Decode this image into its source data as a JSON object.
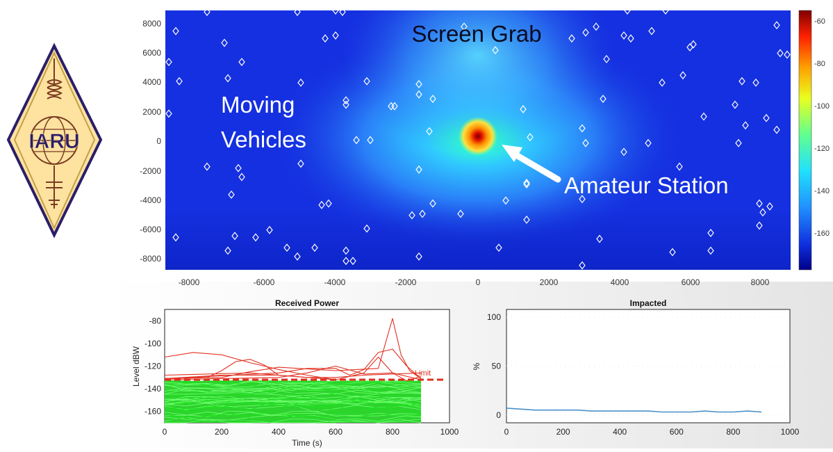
{
  "logo": {
    "text": "IARU"
  },
  "heatmap": {
    "title": "Screen Grab",
    "label_vehicles_line1": "Moving",
    "label_vehicles_line2": "Vehicles",
    "label_station": "Amateur Station",
    "x_ticks": [
      "-8000",
      "-6000",
      "-4000",
      "-2000",
      "0",
      "2000",
      "4000",
      "6000",
      "8000"
    ],
    "y_ticks": [
      "8000",
      "6000",
      "4000",
      "2000",
      "0",
      "-2000",
      "-4000",
      "-6000",
      "-8000"
    ],
    "colorbar_ticks": [
      "-60",
      "-80",
      "-100",
      "-120",
      "-140",
      "-160"
    ],
    "colors": {
      "background": "#1530e0",
      "hot": "#8b0000",
      "glow": "#40e0ff"
    }
  },
  "chart_data": [
    {
      "type": "heatmap",
      "title": "Screen Grab",
      "xlim": [
        -9000,
        9000
      ],
      "ylim": [
        -8800,
        8800
      ],
      "clim": [
        -178,
        -55
      ],
      "colorbar_ticks": [
        -60,
        -80,
        -100,
        -120,
        -140,
        -160
      ],
      "source": {
        "label": "Amateur Station",
        "x": 0,
        "y": 0
      },
      "vehicles": [
        [
          -8700,
          7400
        ],
        [
          -7800,
          8700
        ],
        [
          -7300,
          6600
        ],
        [
          -8900,
          5300
        ],
        [
          -8600,
          4000
        ],
        [
          -8900,
          1800
        ],
        [
          -7200,
          4200
        ],
        [
          -6800,
          5300
        ],
        [
          -5200,
          8700
        ],
        [
          -4100,
          8800
        ],
        [
          -3900,
          8700
        ],
        [
          -4400,
          6900
        ],
        [
          -4100,
          7100
        ],
        [
          -3200,
          4000
        ],
        [
          -1700,
          3800
        ],
        [
          -1700,
          3100
        ],
        [
          -1300,
          2800
        ],
        [
          -2400,
          2300
        ],
        [
          -2500,
          2300
        ],
        [
          -3800,
          2700
        ],
        [
          -3800,
          2400
        ],
        [
          -5100,
          3900
        ],
        [
          -1400,
          600
        ],
        [
          -3500,
          0
        ],
        [
          -3100,
          0
        ],
        [
          -7800,
          -1800
        ],
        [
          -6900,
          -1900
        ],
        [
          -6800,
          -2500
        ],
        [
          -7100,
          -3700
        ],
        [
          -5100,
          -1600
        ],
        [
          -4500,
          -4400
        ],
        [
          -4300,
          -4300
        ],
        [
          -3200,
          -6000
        ],
        [
          -1600,
          -5000
        ],
        [
          -1900,
          -5100
        ],
        [
          -1300,
          -4300
        ],
        [
          -1700,
          -2000
        ],
        [
          -8700,
          -6600
        ],
        [
          -7000,
          -6500
        ],
        [
          -6400,
          -6600
        ],
        [
          -6000,
          -6100
        ],
        [
          -7200,
          -7500
        ],
        [
          -5500,
          -7300
        ],
        [
          -5200,
          -7900
        ],
        [
          -4700,
          -7300
        ],
        [
          -3800,
          -7500
        ],
        [
          -3800,
          -8200
        ],
        [
          -3600,
          -8200
        ],
        [
          -1700,
          -7900
        ],
        [
          -500,
          -5000
        ],
        [
          800,
          -4100
        ],
        [
          600,
          -7300
        ],
        [
          1400,
          -3000
        ],
        [
          1400,
          -2900
        ],
        [
          1400,
          -5400
        ],
        [
          1300,
          2100
        ],
        [
          1500,
          200
        ],
        [
          3000,
          800
        ],
        [
          3100,
          -200
        ],
        [
          3000,
          -4000
        ],
        [
          3500,
          -6700
        ],
        [
          3000,
          -8500
        ],
        [
          4200,
          -800
        ],
        [
          4900,
          -200
        ],
        [
          5800,
          -1800
        ],
        [
          6700,
          -6300
        ],
        [
          6700,
          -7500
        ],
        [
          5600,
          -7600
        ],
        [
          8100,
          -4300
        ],
        [
          8400,
          -4500
        ],
        [
          8100,
          -5800
        ],
        [
          8200,
          -4900
        ],
        [
          8600,
          700
        ],
        [
          8300,
          1500
        ],
        [
          7400,
          2400
        ],
        [
          7700,
          1000
        ],
        [
          7500,
          -200
        ],
        [
          7600,
          4000
        ],
        [
          8000,
          3900
        ],
        [
          6500,
          1600
        ],
        [
          5300,
          3900
        ],
        [
          5900,
          4400
        ],
        [
          6200,
          6500
        ],
        [
          6100,
          6300
        ],
        [
          5000,
          7400
        ],
        [
          4400,
          6900
        ],
        [
          4200,
          7100
        ],
        [
          3700,
          5500
        ],
        [
          3600,
          2800
        ],
        [
          3400,
          7700
        ],
        [
          2700,
          6900
        ],
        [
          3100,
          7300
        ],
        [
          4300,
          8800
        ],
        [
          5400,
          8800
        ],
        [
          8600,
          7800
        ],
        [
          8900,
          5800
        ],
        [
          8700,
          5900
        ],
        [
          500,
          6100
        ],
        [
          -400,
          7700
        ]
      ]
    },
    {
      "type": "line",
      "title": "Received Power",
      "xlabel": "Time (s)",
      "ylabel": "Level dBW",
      "xlim": [
        0,
        1000
      ],
      "ylim": [
        -170,
        -70
      ],
      "x_ticks": [
        0,
        200,
        400,
        600,
        800,
        1000
      ],
      "y_ticks": [
        -80,
        -100,
        -120,
        -140,
        -160
      ],
      "limit": {
        "label": "Limit",
        "value": -132
      },
      "series": [
        {
          "color": "red",
          "x": [
            0,
            100,
            200,
            300,
            400,
            500,
            600
          ],
          "y": [
            -112,
            -108,
            -110,
            -117,
            -123,
            -128,
            -132
          ]
        },
        {
          "color": "red",
          "x": [
            0,
            200,
            300,
            400,
            600,
            750,
            800,
            830,
            860,
            900
          ],
          "y": [
            -131,
            -130,
            -125,
            -121,
            -124,
            -122,
            -78,
            -110,
            -124,
            -131
          ]
        },
        {
          "color": "red",
          "x": [
            0,
            150,
            200,
            250,
            300,
            350,
            400
          ],
          "y": [
            -131,
            -130,
            -124,
            -116,
            -114,
            -119,
            -128
          ]
        },
        {
          "color": "red",
          "x": [
            0,
            400,
            500,
            600,
            650,
            700,
            750,
            800,
            850,
            900
          ],
          "y": [
            -131,
            -126,
            -122,
            -122,
            -128,
            -123,
            -108,
            -105,
            -120,
            -131
          ]
        },
        {
          "color": "red",
          "x": [
            0,
            400,
            500,
            600,
            700,
            800,
            900
          ],
          "y": [
            -132,
            -130,
            -126,
            -120,
            -127,
            -126,
            -132
          ]
        },
        {
          "color": "red",
          "x": [
            0,
            200,
            400,
            600,
            700,
            750,
            800,
            850,
            900
          ],
          "y": [
            -131,
            -128,
            -128,
            -132,
            -126,
            -112,
            -126,
            -133,
            -129
          ]
        },
        {
          "color": "red",
          "x": [
            0,
            300,
            500,
            600,
            700,
            900
          ],
          "y": [
            -128,
            -126,
            -130,
            -130,
            -128,
            -126
          ]
        }
      ],
      "green_band": {
        "x": [
          0,
          900
        ],
        "y_range": [
          -170,
          -133
        ],
        "line_count": 50
      }
    },
    {
      "type": "line",
      "title": "Impacted",
      "xlabel": "",
      "ylabel": "%",
      "xlim": [
        0,
        1000
      ],
      "ylim": [
        -8,
        108
      ],
      "x_ticks": [
        0,
        200,
        400,
        600,
        800,
        1000
      ],
      "y_ticks": [
        0,
        50,
        100
      ],
      "series": [
        {
          "color": "#4a90c8",
          "x": [
            0,
            50,
            100,
            150,
            200,
            250,
            300,
            350,
            400,
            450,
            500,
            550,
            600,
            650,
            700,
            750,
            800,
            850,
            900
          ],
          "y": [
            7,
            6,
            5,
            5,
            5,
            5,
            4,
            4,
            4,
            4,
            4,
            3,
            3,
            3,
            4,
            3,
            3,
            4,
            3
          ]
        }
      ]
    }
  ]
}
